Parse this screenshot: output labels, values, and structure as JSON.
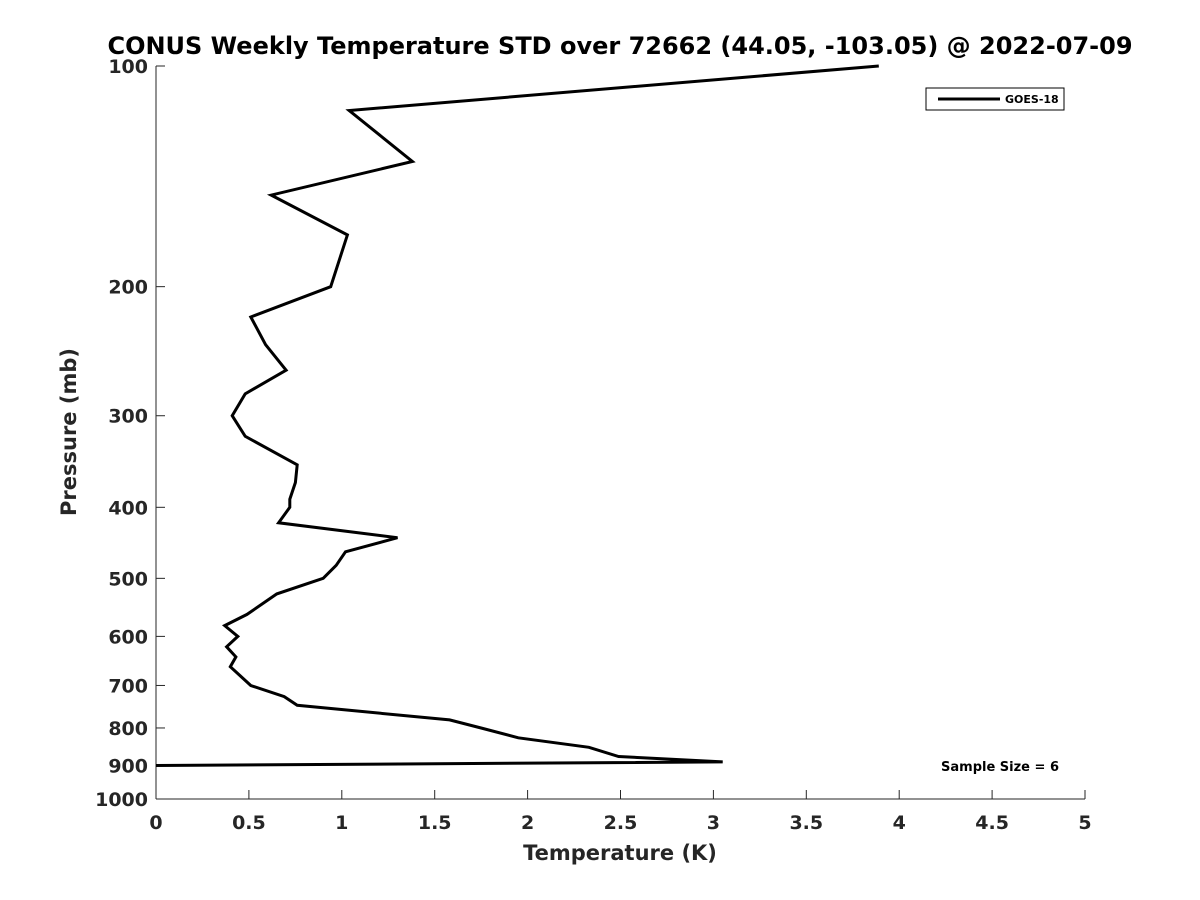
{
  "chart_data": {
    "type": "line",
    "title": "CONUS Weekly Temperature STD over 72662 (44.05, -103.05) @ 2022-07-09",
    "xlabel": "Temperature (K)",
    "ylabel": "Pressure (mb)",
    "xlim": [
      0,
      5
    ],
    "ylim": [
      100,
      1000
    ],
    "y_scale": "log",
    "y_reversed": true,
    "x_ticks": [
      "0",
      "0.5",
      "1",
      "1.5",
      "2",
      "2.5",
      "3",
      "3.5",
      "4",
      "4.5",
      "5"
    ],
    "y_ticks": [
      "100",
      "200",
      "300",
      "400",
      "500",
      "600",
      "700",
      "800",
      "900",
      "1000"
    ],
    "grid": false,
    "legend_position": "top-right",
    "annotation": "Sample Size = 6",
    "series": [
      {
        "name": "GOES-18",
        "color": "#000000",
        "x": [
          3.89,
          1.04,
          1.38,
          0.62,
          1.03,
          0.94,
          0.51,
          0.59,
          0.7,
          0.48,
          0.41,
          0.48,
          0.76,
          0.75,
          0.72,
          0.72,
          0.66,
          1.3,
          1.02,
          0.97,
          0.9,
          0.65,
          0.49,
          0.37,
          0.44,
          0.38,
          0.43,
          0.4,
          0.51,
          0.69,
          0.76,
          1.58,
          1.75,
          1.95,
          2.33,
          2.49,
          3.05,
          0.0
        ],
        "y": [
          100,
          115,
          135,
          150,
          170,
          200,
          220,
          240,
          260,
          280,
          300,
          320,
          350,
          370,
          390,
          400,
          420,
          440,
          460,
          480,
          500,
          525,
          560,
          580,
          600,
          620,
          640,
          660,
          700,
          725,
          745,
          780,
          800,
          825,
          850,
          875,
          890,
          900
        ]
      }
    ]
  }
}
